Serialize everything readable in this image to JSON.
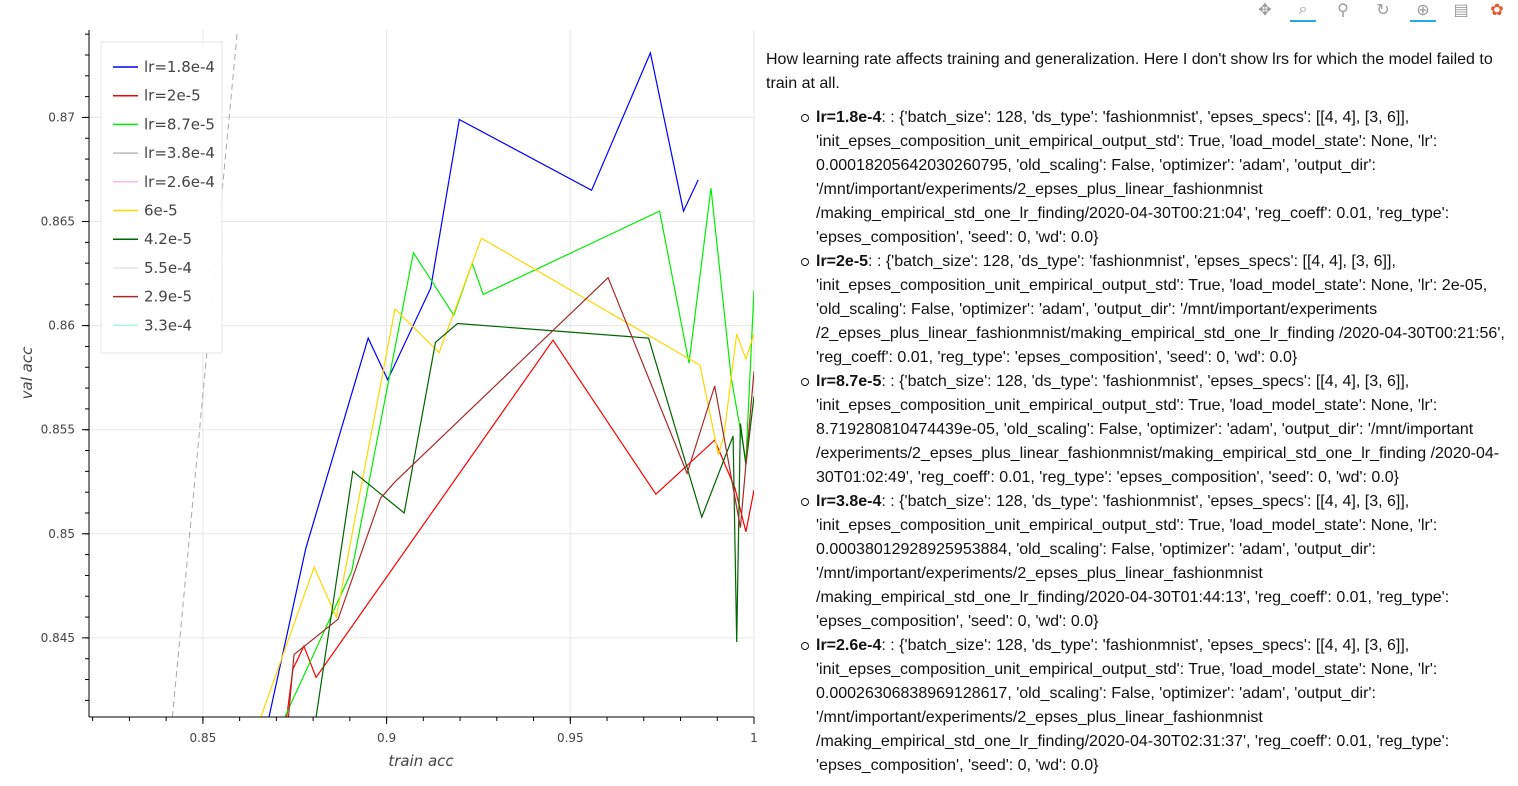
{
  "chart_data": {
    "type": "line",
    "title": "",
    "xlabel": "train acc",
    "ylabel": "val acc",
    "xlim": [
      0.819,
      1.0
    ],
    "ylim": [
      0.8412,
      0.8742
    ],
    "x_ticks": [
      0.85,
      0.9,
      0.95,
      1
    ],
    "x_tick_labels": [
      "0.85",
      "0.9",
      "0.95",
      "1"
    ],
    "y_ticks": [
      0.845,
      0.85,
      0.855,
      0.86,
      0.865,
      0.87
    ],
    "y_tick_labels": [
      "0.845",
      "0.85",
      "0.855",
      "0.86",
      "0.865",
      "0.87"
    ],
    "grid": true,
    "legend_position": "top-left",
    "reference_line": {
      "style": "dashed",
      "color": "#a8a8a8",
      "points": [
        [
          0.8417,
          0.8412
        ],
        [
          0.8594,
          0.8742
        ]
      ]
    },
    "series": [
      {
        "name": "lr=1.8e-4",
        "color": "#0000ff",
        "points": [
          [
            0.868,
            0.8412
          ],
          [
            0.878,
            0.8493
          ],
          [
            0.895,
            0.8594
          ],
          [
            0.9003,
            0.8574
          ],
          [
            0.912,
            0.8618
          ],
          [
            0.9198,
            0.8699
          ],
          [
            0.9558,
            0.8665
          ],
          [
            0.9718,
            0.8731
          ],
          [
            0.9808,
            0.8655
          ],
          [
            0.9848,
            0.867
          ]
        ]
      },
      {
        "name": "lr=2e-5",
        "color": "#ff0000",
        "points": [
          [
            0.8728,
            0.8412
          ],
          [
            0.8745,
            0.8435
          ],
          [
            0.8775,
            0.8446
          ],
          [
            0.8808,
            0.8431
          ],
          [
            0.9453,
            0.8593
          ],
          [
            0.9733,
            0.8519
          ],
          [
            0.9893,
            0.8545
          ],
          [
            0.9948,
            0.8522
          ],
          [
            0.9978,
            0.8501
          ],
          [
            1.0,
            0.8521
          ]
        ]
      },
      {
        "name": "lr=8.7e-5",
        "color": "#00ee00",
        "points": [
          [
            0.8723,
            0.8412
          ],
          [
            0.8905,
            0.8482
          ],
          [
            0.9073,
            0.8635
          ],
          [
            0.9183,
            0.8605
          ],
          [
            0.9233,
            0.863
          ],
          [
            0.9263,
            0.8615
          ],
          [
            0.9743,
            0.8655
          ],
          [
            0.9823,
            0.8582
          ],
          [
            0.9883,
            0.8666
          ],
          [
            0.9938,
            0.8575
          ],
          [
            0.9978,
            0.8535
          ],
          [
            1.0,
            0.8617
          ]
        ]
      },
      {
        "name": "lr=3.8e-4",
        "color": "#bbbbbb",
        "points": []
      },
      {
        "name": "lr=2.6e-4",
        "color": "#ffb6e6",
        "points": []
      },
      {
        "name": "6e-5",
        "color": "#ffd700",
        "points": [
          [
            0.8658,
            0.8412
          ],
          [
            0.8803,
            0.8484
          ],
          [
            0.8863,
            0.846
          ],
          [
            0.9023,
            0.8608
          ],
          [
            0.9143,
            0.8587
          ],
          [
            0.9258,
            0.8642
          ],
          [
            0.9853,
            0.8581
          ],
          [
            0.9903,
            0.8538
          ],
          [
            0.9918,
            0.8547
          ],
          [
            0.9953,
            0.8596
          ],
          [
            0.9978,
            0.8584
          ],
          [
            1.0,
            0.8596
          ]
        ]
      },
      {
        "name": "4.2e-5",
        "color": "#006400",
        "points": [
          [
            0.8808,
            0.8412
          ],
          [
            0.8908,
            0.853
          ],
          [
            0.9048,
            0.851
          ],
          [
            0.9133,
            0.8592
          ],
          [
            0.9193,
            0.8601
          ],
          [
            0.9713,
            0.8594
          ],
          [
            0.9858,
            0.8508
          ],
          [
            0.9943,
            0.8547
          ],
          [
            0.9953,
            0.8448
          ],
          [
            0.9963,
            0.8553
          ],
          [
            0.9978,
            0.8533
          ],
          [
            1.0,
            0.8566
          ]
        ]
      },
      {
        "name": "5.5e-4",
        "color": "#e4e4e4",
        "points": []
      },
      {
        "name": "2.9e-5",
        "color": "#a52a2a",
        "points": [
          [
            0.8733,
            0.8412
          ],
          [
            0.8748,
            0.8442
          ],
          [
            0.8868,
            0.8459
          ],
          [
            0.8983,
            0.8517
          ],
          [
            0.9023,
            0.8525
          ],
          [
            0.9603,
            0.8623
          ],
          [
            0.9818,
            0.8529
          ],
          [
            0.9893,
            0.8571
          ],
          [
            0.9963,
            0.8503
          ],
          [
            1.0,
            0.8578
          ]
        ]
      },
      {
        "name": "3.3e-4",
        "color": "#a8f5e6",
        "points": []
      }
    ]
  },
  "toolbar": {
    "tools": [
      {
        "name": "pan-icon",
        "glyph": "✥",
        "active": false
      },
      {
        "name": "box-zoom-icon",
        "glyph": "⌕",
        "active": true
      },
      {
        "name": "wheel-zoom-icon",
        "glyph": "⚲",
        "active": false
      },
      {
        "name": "reset-icon",
        "glyph": "↻",
        "active": false
      },
      {
        "name": "crosshair-icon",
        "glyph": "⊕",
        "active": true
      },
      {
        "name": "hover-icon",
        "glyph": "▤",
        "active": false
      },
      {
        "name": "bokeh-logo-icon",
        "glyph": "✿",
        "active": false
      }
    ]
  },
  "description": {
    "intro": "How learning rate affects training and generalization. Here I don't show lrs for which the model failed to train at all.",
    "runs": [
      {
        "label": "lr=1.8e-4",
        "text": ": : {'batch_size': 128, 'ds_type': 'fashionmnist', 'epses_specs': [[4, 4], [3, 6]], 'init_epses_composition_unit_empirical_output_std': True, 'load_model_state': None, 'lr': 0.00018205642030260795, 'old_scaling': False, 'optimizer': 'adam', 'output_dir': '/mnt/important/experiments/2_epses_plus_linear_fashionmnist /making_empirical_std_one_lr_finding/2020-04-30T00:21:04', 'reg_coeff': 0.01, 'reg_type': 'epses_composition', 'seed': 0, 'wd': 0.0}"
      },
      {
        "label": "lr=2e-5",
        "text": ": : {'batch_size': 128, 'ds_type': 'fashionmnist', 'epses_specs': [[4, 4], [3, 6]], 'init_epses_composition_unit_empirical_output_std': True, 'load_model_state': None, 'lr': 2e-05, 'old_scaling': False, 'optimizer': 'adam', 'output_dir': '/mnt/important/experiments /2_epses_plus_linear_fashionmnist/making_empirical_std_one_lr_finding /2020-04-30T00:21:56', 'reg_coeff': 0.01, 'reg_type': 'epses_composition', 'seed': 0, 'wd': 0.0}"
      },
      {
        "label": "lr=8.7e-5",
        "text": ": : {'batch_size': 128, 'ds_type': 'fashionmnist', 'epses_specs': [[4, 4], [3, 6]], 'init_epses_composition_unit_empirical_output_std': True, 'load_model_state': None, 'lr': 8.719280810474439e-05, 'old_scaling': False, 'optimizer': 'adam', 'output_dir': '/mnt/important /experiments/2_epses_plus_linear_fashionmnist/making_empirical_std_one_lr_finding /2020-04-30T01:02:49', 'reg_coeff': 0.01, 'reg_type': 'epses_composition', 'seed': 0, 'wd': 0.0}"
      },
      {
        "label": "lr=3.8e-4",
        "text": ": : {'batch_size': 128, 'ds_type': 'fashionmnist', 'epses_specs': [[4, 4], [3, 6]], 'init_epses_composition_unit_empirical_output_std': True, 'load_model_state': None, 'lr': 0.00038012928925953884, 'old_scaling': False, 'optimizer': 'adam', 'output_dir': '/mnt/important/experiments/2_epses_plus_linear_fashionmnist /making_empirical_std_one_lr_finding/2020-04-30T01:44:13', 'reg_coeff': 0.01, 'reg_type': 'epses_composition', 'seed': 0, 'wd': 0.0}"
      },
      {
        "label": "lr=2.6e-4",
        "text": ": : {'batch_size': 128, 'ds_type': 'fashionmnist', 'epses_specs': [[4, 4], [3, 6]], 'init_epses_composition_unit_empirical_output_std': True, 'load_model_state': None, 'lr': 0.00026306838969128617, 'old_scaling': False, 'optimizer': 'adam', 'output_dir': '/mnt/important/experiments/2_epses_plus_linear_fashionmnist /making_empirical_std_one_lr_finding/2020-04-30T02:31:37', 'reg_coeff': 0.01, 'reg_type': 'epses_composition', 'seed': 0, 'wd': 0.0}"
      }
    ]
  }
}
